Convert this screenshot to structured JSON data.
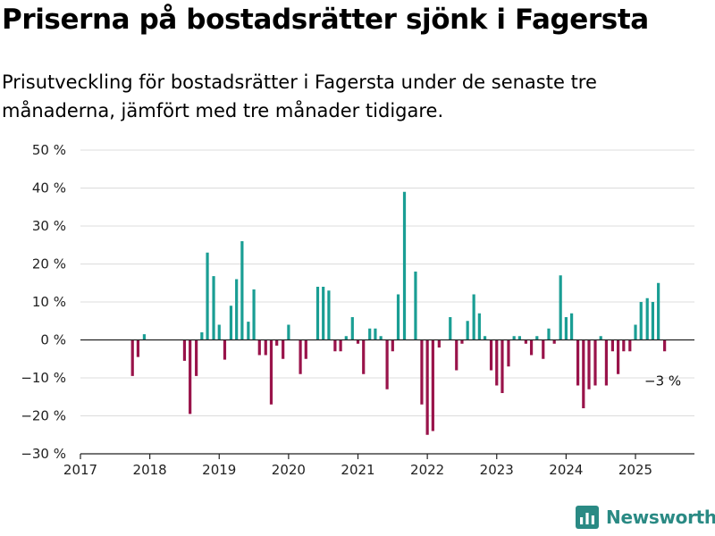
{
  "title": "Priserna på bostadsrätter sjönk i Fagersta",
  "subtitle": "Prisutveckling för bostadsrätter i Fagersta under de senaste tre månaderna, jämfört med tre månader tidigare.",
  "brand": {
    "name": "Newsworthy",
    "icon": "bar-chart-logo-icon",
    "color": "#2a8a84"
  },
  "colors": {
    "positive": "#1a9e94",
    "negative": "#99134a",
    "grid": "#dcdcdc",
    "axis": "#222222"
  },
  "chart_data": {
    "type": "bar",
    "title": "Priserna på bostadsrätter sjönk i Fagersta",
    "xlabel": "",
    "ylabel": "",
    "x_unit": "year",
    "x_range": [
      2017,
      2025.85
    ],
    "ylim": [
      -30,
      50
    ],
    "y_ticks": [
      50,
      40,
      30,
      20,
      10,
      0,
      -10,
      -20,
      -30
    ],
    "y_tick_labels": [
      "50 %",
      "40 %",
      "30 %",
      "20 %",
      "10 %",
      "0 %",
      "−10 %",
      "−20 %",
      "−30 %"
    ],
    "x_ticks": [
      2017,
      2018,
      2019,
      2020,
      2021,
      2022,
      2023,
      2024,
      2025
    ],
    "x_tick_labels": [
      "2017",
      "2018",
      "2019",
      "2020",
      "2021",
      "2022",
      "2023",
      "2024",
      "2025"
    ],
    "grid": true,
    "annotation": {
      "text": "−3 %",
      "x": 2025.42,
      "y": -3
    },
    "points": [
      {
        "x": 2017.75,
        "y": -9.5
      },
      {
        "x": 2017.83,
        "y": -4.5
      },
      {
        "x": 2017.92,
        "y": 1.5
      },
      {
        "x": 2018.5,
        "y": -5.5
      },
      {
        "x": 2018.58,
        "y": -19.5
      },
      {
        "x": 2018.67,
        "y": -9.5
      },
      {
        "x": 2018.75,
        "y": 2
      },
      {
        "x": 2018.83,
        "y": 23
      },
      {
        "x": 2018.92,
        "y": 16.8
      },
      {
        "x": 2019.0,
        "y": 4
      },
      {
        "x": 2019.08,
        "y": -5.2
      },
      {
        "x": 2019.17,
        "y": 9
      },
      {
        "x": 2019.25,
        "y": 16
      },
      {
        "x": 2019.33,
        "y": 26
      },
      {
        "x": 2019.42,
        "y": 4.8
      },
      {
        "x": 2019.5,
        "y": 13.3
      },
      {
        "x": 2019.58,
        "y": -4
      },
      {
        "x": 2019.67,
        "y": -4
      },
      {
        "x": 2019.75,
        "y": -17
      },
      {
        "x": 2019.83,
        "y": -1.5
      },
      {
        "x": 2019.92,
        "y": -5
      },
      {
        "x": 2020.0,
        "y": 4
      },
      {
        "x": 2020.17,
        "y": -9
      },
      {
        "x": 2020.25,
        "y": -5
      },
      {
        "x": 2020.42,
        "y": 14
      },
      {
        "x": 2020.5,
        "y": 14
      },
      {
        "x": 2020.58,
        "y": 13
      },
      {
        "x": 2020.67,
        "y": -3
      },
      {
        "x": 2020.75,
        "y": -3
      },
      {
        "x": 2020.83,
        "y": 1
      },
      {
        "x": 2020.92,
        "y": 6
      },
      {
        "x": 2021.0,
        "y": -1
      },
      {
        "x": 2021.08,
        "y": -9
      },
      {
        "x": 2021.17,
        "y": 3
      },
      {
        "x": 2021.25,
        "y": 3
      },
      {
        "x": 2021.33,
        "y": 1
      },
      {
        "x": 2021.42,
        "y": -13
      },
      {
        "x": 2021.5,
        "y": -3
      },
      {
        "x": 2021.58,
        "y": 12
      },
      {
        "x": 2021.67,
        "y": 39
      },
      {
        "x": 2021.83,
        "y": 18
      },
      {
        "x": 2021.92,
        "y": -17
      },
      {
        "x": 2022.0,
        "y": -25
      },
      {
        "x": 2022.08,
        "y": -24
      },
      {
        "x": 2022.17,
        "y": -2
      },
      {
        "x": 2022.33,
        "y": 6
      },
      {
        "x": 2022.42,
        "y": -8
      },
      {
        "x": 2022.5,
        "y": -1
      },
      {
        "x": 2022.58,
        "y": 5
      },
      {
        "x": 2022.67,
        "y": 12
      },
      {
        "x": 2022.75,
        "y": 7
      },
      {
        "x": 2022.83,
        "y": 1
      },
      {
        "x": 2022.92,
        "y": -8
      },
      {
        "x": 2023.0,
        "y": -12
      },
      {
        "x": 2023.08,
        "y": -14
      },
      {
        "x": 2023.17,
        "y": -7
      },
      {
        "x": 2023.25,
        "y": 1
      },
      {
        "x": 2023.33,
        "y": 1
      },
      {
        "x": 2023.42,
        "y": -1
      },
      {
        "x": 2023.5,
        "y": -4
      },
      {
        "x": 2023.58,
        "y": 1
      },
      {
        "x": 2023.67,
        "y": -5
      },
      {
        "x": 2023.75,
        "y": 3
      },
      {
        "x": 2023.83,
        "y": -1
      },
      {
        "x": 2023.92,
        "y": 17
      },
      {
        "x": 2024.0,
        "y": 6
      },
      {
        "x": 2024.08,
        "y": 7
      },
      {
        "x": 2024.17,
        "y": -12
      },
      {
        "x": 2024.25,
        "y": -18
      },
      {
        "x": 2024.33,
        "y": -13
      },
      {
        "x": 2024.42,
        "y": -12
      },
      {
        "x": 2024.5,
        "y": 1
      },
      {
        "x": 2024.58,
        "y": -12
      },
      {
        "x": 2024.67,
        "y": -3
      },
      {
        "x": 2024.75,
        "y": -9
      },
      {
        "x": 2024.83,
        "y": -3
      },
      {
        "x": 2024.92,
        "y": -3
      },
      {
        "x": 2025.0,
        "y": 4
      },
      {
        "x": 2025.08,
        "y": 10
      },
      {
        "x": 2025.17,
        "y": 11
      },
      {
        "x": 2025.25,
        "y": 10
      },
      {
        "x": 2025.33,
        "y": 15
      },
      {
        "x": 2025.42,
        "y": -3
      }
    ]
  }
}
